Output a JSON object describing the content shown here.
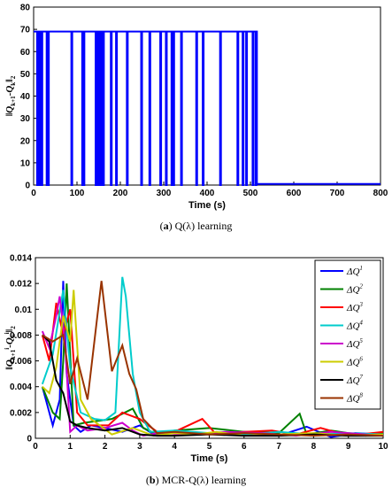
{
  "captions": [
    {
      "letter": "a",
      "text": "Q(λ)  learning"
    },
    {
      "letter": "b",
      "text": "MCR-Q(λ)  learning"
    }
  ],
  "chart_data": [
    {
      "type": "line",
      "ylabel": "‖Q_{k+1} − Q_k‖₂",
      "xlabel": "Time (s)",
      "xlim": [
        0,
        800
      ],
      "ylim": [
        0,
        80
      ],
      "x_ticks": [
        0,
        100,
        200,
        300,
        400,
        500,
        600,
        700,
        800
      ],
      "y_ticks": [
        0,
        10,
        20,
        30,
        40,
        50,
        60,
        70,
        80
      ],
      "grid": false,
      "color": "#0000ff",
      "series": [
        {
          "high_value": 69,
          "low_value": 0.5,
          "spike_down_times": [
            8,
            10,
            12,
            14,
            16,
            18,
            30,
            33,
            87,
            112,
            115,
            143,
            147,
            150,
            152,
            155,
            158,
            160,
            178,
            190,
            215,
            248,
            267,
            292,
            305,
            318,
            322,
            340,
            375,
            390,
            430,
            470,
            482,
            490,
            505,
            512
          ],
          "drop_time": 515,
          "end_time": 800
        }
      ]
    },
    {
      "type": "line",
      "ylabel": "‖Q_{k+1}^i − Q_k^i‖₂",
      "xlabel": "Time (s)",
      "xlim": [
        0,
        10
      ],
      "ylim": [
        0,
        0.014
      ],
      "x_ticks": [
        0,
        1,
        2,
        3,
        4,
        5,
        6,
        7,
        8,
        9,
        10
      ],
      "y_ticks": [
        0,
        0.002,
        0.004,
        0.006,
        0.008,
        0.01,
        0.012,
        0.014
      ],
      "y_tick_labels": [
        "0",
        "0.002",
        "0.004",
        "0.006",
        "0.008",
        "0.01",
        "0.012",
        "0.014"
      ],
      "grid": false,
      "legend_position": "top-right",
      "series": [
        {
          "name": "ΔQ",
          "sup": "1",
          "color": "#0000ff",
          "x": [
            0.2,
            0.5,
            0.7,
            0.8,
            0.9,
            1.1,
            1.3,
            1.6,
            2.0,
            2.5,
            3.0,
            3.4,
            4.0,
            5.0,
            6.0,
            7.0,
            7.8,
            8.5,
            9.2,
            10.0
          ],
          "y": [
            0.004,
            0.001,
            0.003,
            0.0122,
            0.005,
            0.001,
            0.0005,
            0.001,
            0.0008,
            0.0005,
            0.001,
            0.0003,
            0.0004,
            0.0003,
            0.0005,
            0.0002,
            0.0009,
            0.0001,
            0.0004,
            0.0003
          ]
        },
        {
          "name": "ΔQ",
          "sup": "2",
          "color": "#008000",
          "x": [
            0.2,
            0.5,
            0.7,
            0.8,
            0.9,
            1.1,
            1.4,
            2.2,
            2.8,
            3.1,
            3.5,
            4.0,
            5.0,
            6.0,
            6.5,
            7.0,
            7.6,
            7.8,
            8.5,
            9.5,
            10.0
          ],
          "y": [
            0.004,
            0.002,
            0.0015,
            0.006,
            0.012,
            0.001,
            0.0012,
            0.0015,
            0.0023,
            0.0008,
            0.0003,
            0.0006,
            0.0008,
            0.0005,
            0.0005,
            0.0004,
            0.0019,
            0.0003,
            0.0006,
            0.0002,
            0.0004
          ]
        },
        {
          "name": "ΔQ",
          "sup": "3",
          "color": "#ff0000",
          "x": [
            0.2,
            0.4,
            0.6,
            0.8,
            1.0,
            1.2,
            1.5,
            2.1,
            2.5,
            3.0,
            3.5,
            4.0,
            4.8,
            5.2,
            6.0,
            6.8,
            7.5,
            8.2,
            9.0,
            10.0
          ],
          "y": [
            0.008,
            0.006,
            0.0105,
            0.008,
            0.01,
            0.002,
            0.001,
            0.001,
            0.002,
            0.0015,
            0.0005,
            0.0005,
            0.0015,
            0.0003,
            0.0005,
            0.0006,
            0.0003,
            0.0008,
            0.0002,
            0.0005
          ]
        },
        {
          "name": "ΔQ",
          "sup": "4",
          "color": "#00cccc",
          "x": [
            0.2,
            0.5,
            0.8,
            1.0,
            1.3,
            1.7,
            2.0,
            2.3,
            2.5,
            2.6,
            2.8,
            3.0,
            3.3,
            4.0,
            5.0,
            6.0,
            7.0,
            8.0,
            9.0,
            10.0
          ],
          "y": [
            0.0042,
            0.0065,
            0.0115,
            0.0055,
            0.002,
            0.0015,
            0.0014,
            0.002,
            0.0125,
            0.011,
            0.005,
            0.002,
            0.0005,
            0.0006,
            0.0004,
            0.0003,
            0.0005,
            0.0003,
            0.0004,
            0.0003
          ]
        },
        {
          "name": "ΔQ",
          "sup": "5",
          "color": "#cc00cc",
          "x": [
            0.2,
            0.4,
            0.6,
            0.7,
            0.85,
            1.0,
            1.2,
            1.5,
            2.0,
            2.5,
            2.8,
            3.1,
            3.5,
            4.5,
            5.5,
            6.5,
            7.5,
            8.5,
            9.5,
            10.0
          ],
          "y": [
            0.0083,
            0.007,
            0.0095,
            0.011,
            0.0075,
            0.0005,
            0.001,
            0.0006,
            0.0008,
            0.0012,
            0.0006,
            0.0002,
            0.0004,
            0.0003,
            0.0005,
            0.0004,
            0.0002,
            0.0005,
            0.0003,
            0.0002
          ]
        },
        {
          "name": "ΔQ",
          "sup": "6",
          "color": "#cccc00",
          "x": [
            0.2,
            0.4,
            0.6,
            0.8,
            1.0,
            1.1,
            1.3,
            1.6,
            2.2,
            2.8,
            3.4,
            4.0,
            4.6,
            5.2,
            6.0,
            7.0,
            8.0,
            9.0,
            10.0
          ],
          "y": [
            0.004,
            0.0035,
            0.0055,
            0.0095,
            0.0075,
            0.0115,
            0.003,
            0.0015,
            0.0003,
            0.0008,
            0.0002,
            0.0004,
            0.0003,
            0.0005,
            0.0002,
            0.0003,
            0.0004,
            0.0002,
            0.0003
          ]
        },
        {
          "name": "ΔQ",
          "sup": "7",
          "color": "#000000",
          "x": [
            0.2,
            0.4,
            0.6,
            0.8,
            1.0,
            1.2,
            1.5,
            2.0,
            2.5,
            3.0,
            3.5,
            4.0,
            5.0,
            6.0,
            7.0,
            8.0,
            9.0,
            10.0
          ],
          "y": [
            0.008,
            0.0075,
            0.0045,
            0.0035,
            0.0013,
            0.001,
            0.0008,
            0.0006,
            0.0008,
            0.0003,
            0.0002,
            0.0002,
            0.0003,
            0.0002,
            0.0002,
            0.0003,
            0.0002,
            0.0002
          ]
        },
        {
          "name": "ΔQ",
          "sup": "8",
          "color": "#993300",
          "x": [
            0.2,
            0.5,
            0.8,
            1.0,
            1.2,
            1.5,
            1.9,
            2.2,
            2.5,
            2.7,
            2.9,
            3.1,
            3.5,
            4.0,
            5.0,
            6.0,
            7.0,
            8.0,
            9.0,
            10.0
          ],
          "y": [
            0.008,
            0.0075,
            0.008,
            0.0042,
            0.0062,
            0.003,
            0.0122,
            0.0052,
            0.0072,
            0.005,
            0.0038,
            0.0015,
            0.0004,
            0.0005,
            0.0003,
            0.0004,
            0.0003,
            0.0002,
            0.0003,
            0.0002
          ]
        }
      ]
    }
  ]
}
